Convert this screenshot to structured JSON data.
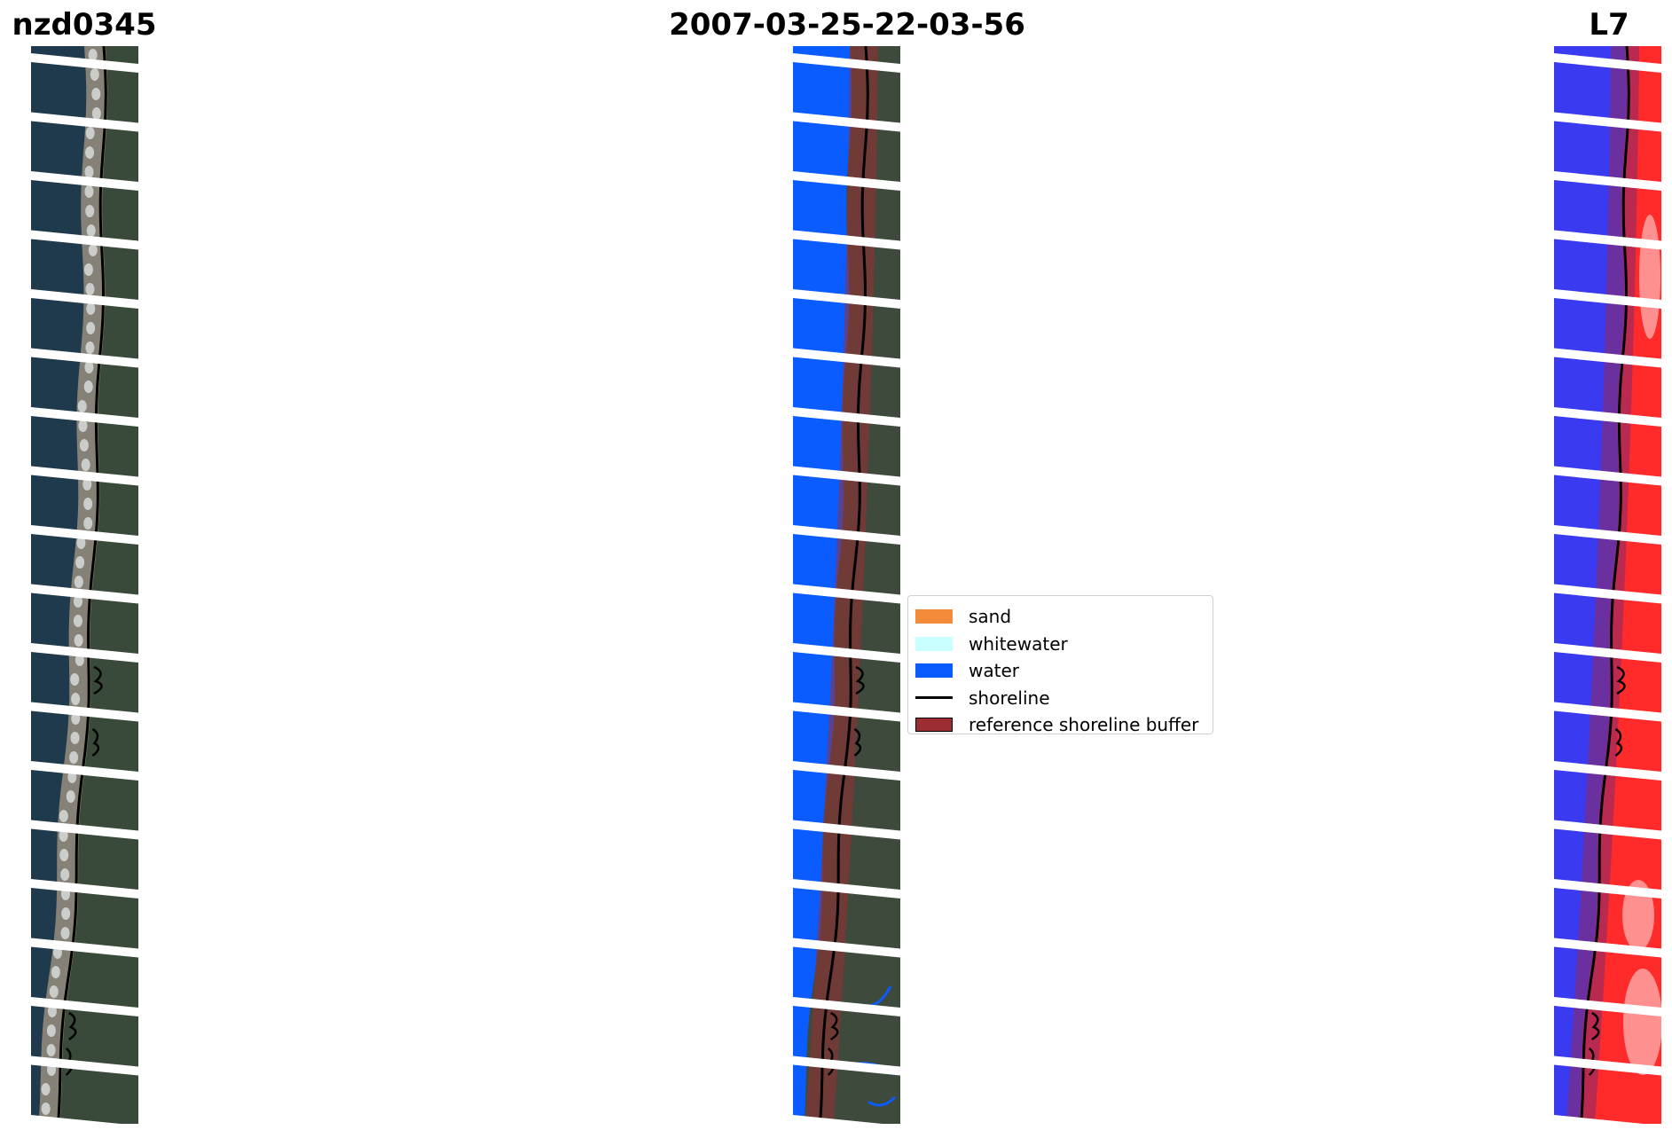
{
  "titles": {
    "left": "nzd0345",
    "center": "2007-03-25-22-03-56",
    "right": "L7"
  },
  "colors": {
    "sand": "#f38b3b",
    "whitewater": "#c9ffff",
    "water": "#0a5cff",
    "shoreline": "#000000",
    "reference_buffer": "#9b2d33",
    "ocean_rgb": "#1f3a4d",
    "land_rgb": "#3a4a3a",
    "beach_rgb": "#a89a86",
    "index_water": "#3a3af0",
    "index_land": "#ff2a2a"
  },
  "legend": {
    "items": [
      {
        "label": "sand",
        "color": "#f38b3b",
        "kind": "patch"
      },
      {
        "label": "whitewater",
        "color": "#c9ffff",
        "kind": "patch"
      },
      {
        "label": "water",
        "color": "#0a5cff",
        "kind": "patch"
      },
      {
        "label": "shoreline",
        "color": "#000000",
        "kind": "line"
      },
      {
        "label": "reference shoreline buffer",
        "color": "#9b2d33",
        "kind": "patch-border"
      }
    ]
  },
  "panels": [
    {
      "id": "rgb",
      "name": "rgb-image-panel"
    },
    {
      "id": "classified",
      "name": "classified-image-panel"
    },
    {
      "id": "index",
      "name": "water-index-image-panel"
    }
  ]
}
